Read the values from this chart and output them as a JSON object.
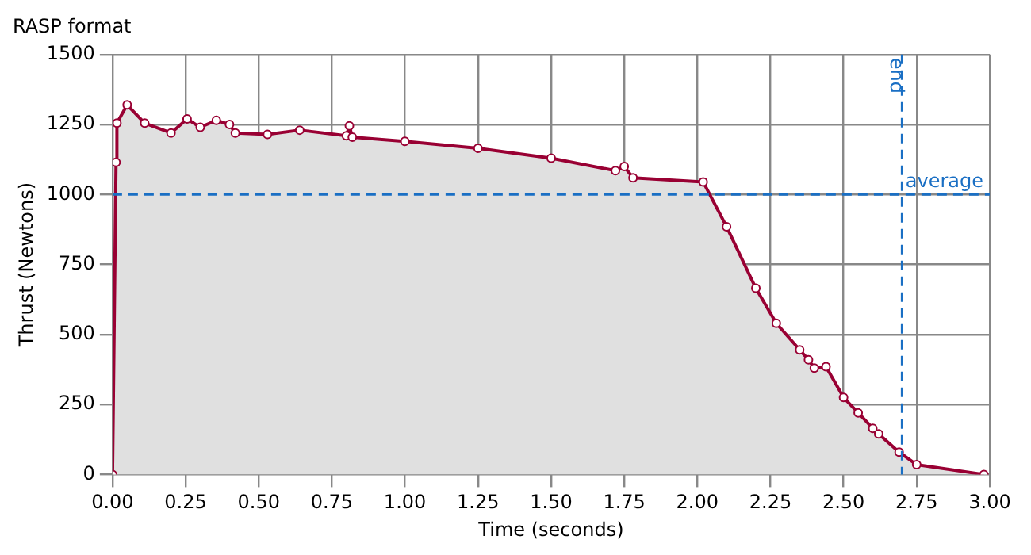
{
  "chart_data": {
    "type": "area",
    "title": "RASP format",
    "xlabel": "Time (seconds)",
    "ylabel": "Thrust (Newtons)",
    "x": [
      0,
      0.012,
      0.015,
      0.05,
      0.11,
      0.2,
      0.255,
      0.3,
      0.355,
      0.4,
      0.42,
      0.53,
      0.64,
      0.8,
      0.81,
      0.82,
      1.0,
      1.25,
      1.5,
      1.72,
      1.75,
      1.78,
      2.02,
      2.1,
      2.2,
      2.27,
      2.35,
      2.38,
      2.4,
      2.44,
      2.5,
      2.55,
      2.6,
      2.62,
      2.69,
      2.75,
      2.98
    ],
    "series": [
      {
        "color": "#990033",
        "values": [
          0,
          1115,
          1255,
          1320,
          1255,
          1220,
          1270,
          1240,
          1265,
          1250,
          1220,
          1215,
          1230,
          1210,
          1245,
          1205,
          1190,
          1165,
          1130,
          1085,
          1100,
          1060,
          1045,
          885,
          665,
          540,
          445,
          410,
          380,
          385,
          275,
          220,
          165,
          145,
          80,
          35,
          0
        ]
      }
    ],
    "xlim": [
      0,
      3
    ],
    "xticks": [
      {
        "value": 0,
        "label": "0.00"
      },
      {
        "value": 0.25,
        "label": "0.25"
      },
      {
        "value": 0.5,
        "label": "0.50"
      },
      {
        "value": 0.75,
        "label": "0.75"
      },
      {
        "value": 1,
        "label": "1.00"
      },
      {
        "value": 1.25,
        "label": "1.25"
      },
      {
        "value": 1.5,
        "label": "1.50"
      },
      {
        "value": 1.75,
        "label": "1.75"
      },
      {
        "value": 2,
        "label": "2.00"
      },
      {
        "value": 2.25,
        "label": "2.25"
      },
      {
        "value": 2.5,
        "label": "2.50"
      },
      {
        "value": 2.75,
        "label": "2.75"
      },
      {
        "value": 3,
        "label": "3.00"
      }
    ],
    "ylim": [
      0,
      1500
    ],
    "yticks": [
      0,
      250,
      500,
      750,
      1000,
      1250,
      1500
    ],
    "ref_lines": [
      {
        "axis": "y",
        "value": 1000,
        "label": "average",
        "color": "#1a6fc4",
        "line_style": "dashed"
      },
      {
        "axis": "x",
        "value": 2.7,
        "label": "end",
        "color": "#1a6fc4",
        "line_style": "dashed"
      }
    ],
    "grid": true,
    "legend": false,
    "marker": "circle",
    "line_style": "solid"
  }
}
